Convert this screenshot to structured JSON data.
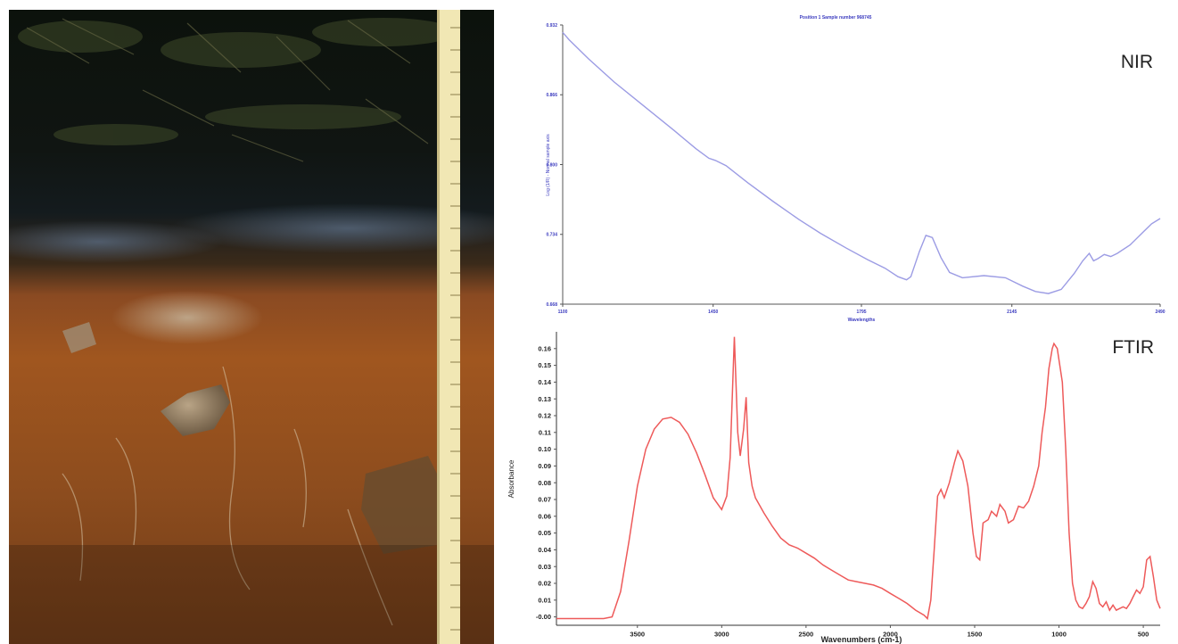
{
  "chart_data": [
    {
      "type": "line",
      "title": "Position 1  Sample number 968745",
      "corner_label": "NIR",
      "xlabel": "Wavelengths",
      "ylabel": "Log (1/R) - Normal sample axis",
      "xlim": [
        1100,
        2490
      ],
      "ylim": [
        0.668,
        0.932
      ],
      "x_ticks": [
        1100,
        1450,
        1795,
        2145,
        2490
      ],
      "y_ticks": [
        0.668,
        0.734,
        0.8,
        0.866,
        0.932
      ],
      "y_tick_labels": [
        "0.668",
        "0.734",
        "0.800",
        "0.866",
        "0.932"
      ],
      "series": [
        {
          "color": "#9c9ce4",
          "x": [
            1100,
            1115,
            1160,
            1220,
            1290,
            1360,
            1410,
            1440,
            1455,
            1480,
            1530,
            1590,
            1650,
            1700,
            1760,
            1810,
            1850,
            1880,
            1900,
            1910,
            1930,
            1945,
            1960,
            1980,
            2000,
            2030,
            2080,
            2130,
            2170,
            2200,
            2230,
            2260,
            2290,
            2310,
            2325,
            2335,
            2345,
            2360,
            2375,
            2390,
            2420,
            2450,
            2470,
            2490
          ],
          "y": [
            0.925,
            0.918,
            0.9,
            0.878,
            0.855,
            0.832,
            0.815,
            0.806,
            0.804,
            0.799,
            0.783,
            0.765,
            0.748,
            0.735,
            0.721,
            0.71,
            0.702,
            0.694,
            0.691,
            0.694,
            0.718,
            0.733,
            0.731,
            0.712,
            0.698,
            0.693,
            0.695,
            0.693,
            0.685,
            0.68,
            0.678,
            0.682,
            0.697,
            0.709,
            0.716,
            0.709,
            0.711,
            0.715,
            0.713,
            0.716,
            0.724,
            0.736,
            0.744,
            0.749
          ]
        }
      ]
    },
    {
      "type": "line",
      "corner_label": "FTIR",
      "xlabel": "Wavenumbers (cm-1)",
      "ylabel": "Absorbance",
      "xlim": [
        3980,
        400
      ],
      "ylim": [
        -0.005,
        0.17
      ],
      "x_ticks": [
        3500,
        3000,
        2500,
        2000,
        1500,
        1000,
        500
      ],
      "x_tick_labels": [
        "3500",
        "3000",
        "2500",
        "2000",
        "1500",
        "1000",
        "500"
      ],
      "y_ticks": [
        0.0,
        0.01,
        0.02,
        0.03,
        0.04,
        0.05,
        0.06,
        0.07,
        0.08,
        0.09,
        0.1,
        0.11,
        0.12,
        0.13,
        0.14,
        0.15,
        0.16
      ],
      "y_tick_labels": [
        "-0.00",
        "0.01",
        "0.02",
        "0.03",
        "0.04",
        "0.05",
        "0.06",
        "0.07",
        "0.08",
        "0.09",
        "0.10",
        "0.11",
        "0.12",
        "0.13",
        "0.14",
        "0.15",
        "0.16"
      ],
      "series": [
        {
          "color": "#ee5a5a",
          "x": [
            3980,
            3800,
            3700,
            3650,
            3600,
            3550,
            3500,
            3450,
            3400,
            3350,
            3300,
            3250,
            3200,
            3150,
            3100,
            3050,
            3000,
            2970,
            2950,
            2925,
            2905,
            2890,
            2870,
            2855,
            2840,
            2820,
            2800,
            2750,
            2700,
            2650,
            2600,
            2550,
            2500,
            2450,
            2400,
            2350,
            2300,
            2250,
            2200,
            2150,
            2100,
            2050,
            2000,
            1950,
            1900,
            1850,
            1800,
            1780,
            1760,
            1740,
            1720,
            1700,
            1680,
            1650,
            1620,
            1600,
            1570,
            1540,
            1510,
            1490,
            1470,
            1450,
            1420,
            1400,
            1370,
            1350,
            1320,
            1300,
            1270,
            1240,
            1210,
            1180,
            1150,
            1120,
            1100,
            1080,
            1060,
            1040,
            1030,
            1010,
            980,
            960,
            940,
            920,
            900,
            880,
            860,
            840,
            820,
            800,
            780,
            760,
            740,
            720,
            700,
            680,
            660,
            640,
            620,
            600,
            580,
            560,
            540,
            520,
            500,
            480,
            460,
            440,
            420,
            400
          ],
          "y": [
            -0.001,
            -0.001,
            -0.001,
            0.0,
            0.015,
            0.045,
            0.078,
            0.1,
            0.112,
            0.118,
            0.119,
            0.116,
            0.109,
            0.098,
            0.085,
            0.071,
            0.064,
            0.072,
            0.095,
            0.167,
            0.11,
            0.096,
            0.112,
            0.131,
            0.092,
            0.078,
            0.071,
            0.062,
            0.054,
            0.047,
            0.043,
            0.041,
            0.038,
            0.035,
            0.031,
            0.028,
            0.025,
            0.022,
            0.021,
            0.02,
            0.019,
            0.017,
            0.014,
            0.011,
            0.008,
            0.004,
            0.001,
            -0.001,
            0.01,
            0.04,
            0.072,
            0.076,
            0.071,
            0.08,
            0.092,
            0.099,
            0.093,
            0.078,
            0.05,
            0.036,
            0.034,
            0.056,
            0.058,
            0.063,
            0.06,
            0.067,
            0.063,
            0.056,
            0.058,
            0.066,
            0.065,
            0.069,
            0.078,
            0.09,
            0.11,
            0.125,
            0.148,
            0.16,
            0.163,
            0.16,
            0.14,
            0.1,
            0.05,
            0.02,
            0.01,
            0.006,
            0.005,
            0.008,
            0.012,
            0.021,
            0.017,
            0.008,
            0.006,
            0.009,
            0.004,
            0.007,
            0.004,
            0.005,
            0.006,
            0.005,
            0.008,
            0.012,
            0.016,
            0.014,
            0.018,
            0.034,
            0.036,
            0.024,
            0.01,
            0.005
          ]
        }
      ]
    }
  ]
}
